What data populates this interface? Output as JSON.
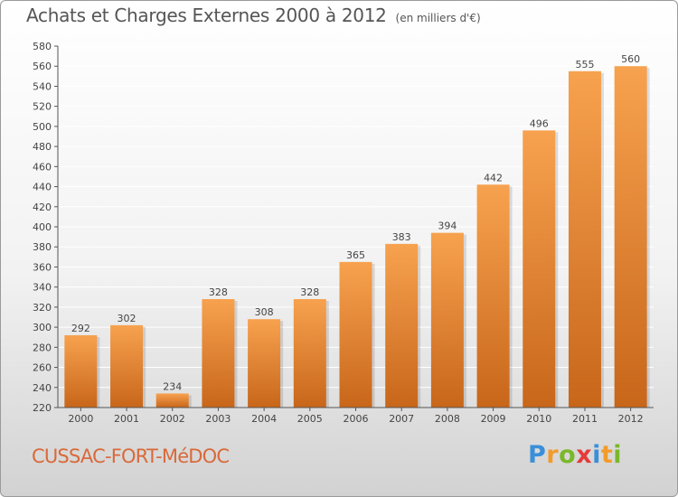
{
  "header": {
    "title": "Achats et Charges Externes 2000 à 2012",
    "unit": "(en milliers d'€)"
  },
  "footer": {
    "commune": "CUSSAC-FORT-MéDOC"
  },
  "logo": {
    "letters": [
      "P",
      "r",
      "o",
      "x",
      "i",
      "t",
      "i"
    ],
    "colors": [
      "#3a8fd9",
      "#f29b2c",
      "#7ab829",
      "#e63a3a",
      "#3a8fd9",
      "#f29b2c",
      "#7ab829"
    ]
  },
  "colors": {
    "bar_top": "#f7a24f",
    "bar_bottom": "#c8661a",
    "grid": "#ffffff",
    "text": "#444444"
  },
  "chart_data": {
    "type": "bar",
    "categories": [
      "2000",
      "2001",
      "2002",
      "2003",
      "2004",
      "2005",
      "2006",
      "2007",
      "2008",
      "2009",
      "2010",
      "2011",
      "2012"
    ],
    "values": [
      292,
      302,
      234,
      328,
      308,
      328,
      365,
      383,
      394,
      442,
      496,
      555,
      560
    ],
    "ylim": [
      220,
      580
    ],
    "yticks": [
      220,
      240,
      260,
      280,
      300,
      320,
      340,
      360,
      380,
      400,
      420,
      440,
      460,
      480,
      500,
      520,
      540,
      560,
      580
    ],
    "grid": true,
    "title": "Achats et Charges Externes 2000 à 2012",
    "xlabel": "",
    "ylabel": ""
  }
}
